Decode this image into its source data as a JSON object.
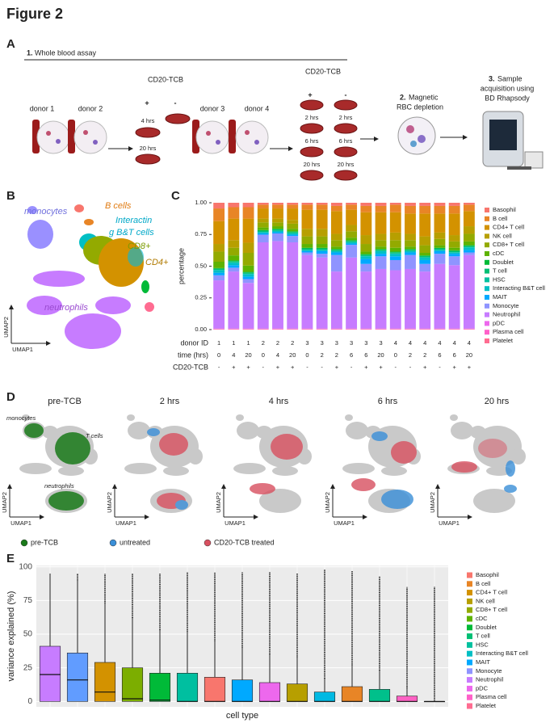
{
  "figure_title": "Figure 2",
  "panel_letters": [
    "A",
    "B",
    "C",
    "D",
    "E"
  ],
  "panel_a": {
    "step1_num": "1.",
    "step1": "Whole blood assay",
    "donors": [
      "donor 1",
      "donor 2",
      "donor 3",
      "donor 4"
    ],
    "treatment": "CD20-TCB",
    "plus": "+",
    "minus": "-",
    "times_left": [
      "4 hrs",
      "20 hrs"
    ],
    "times_right": [
      "2 hrs",
      "2 hrs",
      "6 hrs",
      "6 hrs",
      "20 hrs",
      "20 hrs"
    ],
    "step2_num": "2.",
    "step2": [
      "Magnetic",
      "RBC depletion"
    ],
    "step3_num": "3.",
    "step3": [
      "Sample",
      "acquisition using",
      "BD Rhapsody"
    ]
  },
  "panel_b": {
    "labels": [
      "monocytes",
      "B cells",
      "Interactin",
      "g B&T cells",
      "CD8+",
      "CD4+",
      "neutrophils"
    ],
    "x_axis": "UMAP1",
    "y_axis": "UMAP2"
  },
  "panel_d": {
    "titles": [
      "pre-TCB",
      "2 hrs",
      "4  hrs",
      "6  hrs",
      "20  hrs"
    ],
    "labels": [
      "monocytes",
      "T cells",
      "neutrophils"
    ],
    "x_axis": "UMAP1",
    "y_axis": "UMAP2",
    "legend": [
      {
        "name": "pre-TCB",
        "color": "#1a7a1a"
      },
      {
        "name": "untreated",
        "color": "#3a8fd8"
      },
      {
        "name": "CD20-TCB treated",
        "color": "#d85060"
      }
    ]
  },
  "chart_data": [
    {
      "type": "stacked_bar",
      "y_label": "percentage",
      "ylim": [
        0,
        1
      ],
      "yticks": [
        {
          "value": 0,
          "label": "0.00"
        },
        {
          "value": 0.25,
          "label": "0.25"
        },
        {
          "value": 0.5,
          "label": "0.50"
        },
        {
          "value": 0.75,
          "label": "0.75"
        },
        {
          "value": 1,
          "label": "1.00"
        }
      ],
      "row_labels": [
        "donor ID",
        "time (hrs)",
        "CD20-TCB"
      ],
      "donor": [
        1,
        1,
        1,
        2,
        2,
        2,
        3,
        3,
        3,
        3,
        3,
        3,
        4,
        4,
        4,
        4,
        4,
        4
      ],
      "time": [
        0,
        4,
        20,
        0,
        4,
        20,
        0,
        2,
        2,
        6,
        6,
        20,
        0,
        2,
        2,
        6,
        6,
        20
      ],
      "treatment": [
        "-",
        "+",
        "+",
        "-",
        "+",
        "+",
        "-",
        "-",
        "+",
        "-",
        "+",
        "+",
        "-",
        "-",
        "+",
        "-",
        "+",
        "+"
      ],
      "series": [
        {
          "name": "Basophil",
          "color": "#F8766D",
          "values": [
            0.045,
            0.035,
            0.035,
            0.015,
            0.015,
            0.015,
            0.015,
            0.015,
            0.025,
            0.015,
            0.025,
            0.025,
            0.015,
            0.025,
            0.025,
            0.025,
            0.025,
            0.015
          ]
        },
        {
          "name": "B cell",
          "color": "#E88526",
          "values": [
            0.1,
            0.09,
            0.09,
            0.03,
            0.03,
            0.03,
            0.04,
            0.04,
            0.04,
            0.04,
            0.05,
            0.05,
            0.06,
            0.06,
            0.06,
            0.06,
            0.06,
            0.05
          ]
        },
        {
          "name": "CD4+ T cell",
          "color": "#D39200",
          "values": [
            0.18,
            0.17,
            0.19,
            0.08,
            0.08,
            0.09,
            0.15,
            0.15,
            0.18,
            0.12,
            0.18,
            0.17,
            0.16,
            0.16,
            0.18,
            0.15,
            0.17,
            0.12
          ]
        },
        {
          "name": "NK cell",
          "color": "#B79F00",
          "values": [
            0.06,
            0.06,
            0.08,
            0.03,
            0.03,
            0.03,
            0.06,
            0.06,
            0.05,
            0.05,
            0.07,
            0.05,
            0.06,
            0.05,
            0.07,
            0.05,
            0.05,
            0.06
          ]
        },
        {
          "name": "CD8+ T cell",
          "color": "#93AA00",
          "values": [
            0.08,
            0.06,
            0.1,
            0.04,
            0.03,
            0.04,
            0.06,
            0.06,
            0.05,
            0.05,
            0.06,
            0.05,
            0.06,
            0.05,
            0.06,
            0.05,
            0.05,
            0.06
          ]
        },
        {
          "name": "cDC",
          "color": "#5EB300",
          "values": [
            0.05,
            0.04,
            0.05,
            0.02,
            0.02,
            0.02,
            0.03,
            0.03,
            0.02,
            0.02,
            0.02,
            0.02,
            0.03,
            0.02,
            0.02,
            0.02,
            0.02,
            0.03
          ]
        },
        {
          "name": "Doublet",
          "color": "#00BA38",
          "values": [
            0.005,
            0.005,
            0.005,
            0.005,
            0.005,
            0.005,
            0.005,
            0.005,
            0.005,
            0.005,
            0.005,
            0.005,
            0.005,
            0.005,
            0.005,
            0.005,
            0.005,
            0.005
          ]
        },
        {
          "name": "T cell",
          "color": "#00BF74",
          "values": [
            0.01,
            0.01,
            0.01,
            0.01,
            0.01,
            0.01,
            0.01,
            0.01,
            0.01,
            0.01,
            0.01,
            0.01,
            0.01,
            0.01,
            0.01,
            0.01,
            0.01,
            0.01
          ]
        },
        {
          "name": "HSC",
          "color": "#00C19F",
          "values": [
            0.002,
            0.002,
            0.002,
            0.002,
            0.002,
            0.002,
            0.002,
            0.002,
            0.002,
            0.002,
            0.002,
            0.002,
            0.002,
            0.002,
            0.002,
            0.002,
            0.002,
            0.002
          ]
        },
        {
          "name": "Interacting B&T cell",
          "color": "#00BFC4",
          "values": [
            0.02,
            0.02,
            0.02,
            0.01,
            0.01,
            0.01,
            0.01,
            0.01,
            0.01,
            0.01,
            0.02,
            0.02,
            0.02,
            0.01,
            0.02,
            0.01,
            0.01,
            0.02
          ]
        },
        {
          "name": "MAIT",
          "color": "#00A9FF",
          "values": [
            0.02,
            0.02,
            0.02,
            0.01,
            0.01,
            0.01,
            0.01,
            0.02,
            0.02,
            0.01,
            0.04,
            0.02,
            0.03,
            0.02,
            0.03,
            0.02,
            0.02,
            0.02
          ]
        },
        {
          "name": "Monocyte",
          "color": "#8F94FF",
          "values": [
            0.04,
            0.03,
            0.03,
            0.06,
            0.06,
            0.05,
            0.02,
            0.03,
            0.13,
            0.1,
            0.06,
            0.1,
            0.08,
            0.11,
            0.06,
            0.08,
            0.07,
            0.02
          ]
        },
        {
          "name": "Neutrophil",
          "color": "#C77CFF",
          "values": [
            0.38,
            0.45,
            0.36,
            0.68,
            0.69,
            0.68,
            0.58,
            0.56,
            0.45,
            0.56,
            0.45,
            0.47,
            0.46,
            0.47,
            0.45,
            0.51,
            0.5,
            0.58
          ]
        },
        {
          "name": "pDC",
          "color": "#ED68ED",
          "values": [
            0.003,
            0.003,
            0.003,
            0.003,
            0.003,
            0.003,
            0.003,
            0.003,
            0.003,
            0.003,
            0.003,
            0.003,
            0.003,
            0.003,
            0.003,
            0.003,
            0.003,
            0.003
          ]
        },
        {
          "name": "Plasma cell",
          "color": "#FF61C9",
          "values": [
            0.002,
            0.002,
            0.002,
            0.002,
            0.002,
            0.002,
            0.002,
            0.002,
            0.002,
            0.002,
            0.002,
            0.002,
            0.002,
            0.002,
            0.002,
            0.002,
            0.002,
            0.002
          ]
        },
        {
          "name": "Platelet",
          "color": "#FF6C91",
          "values": [
            0.003,
            0.003,
            0.003,
            0.003,
            0.003,
            0.003,
            0.003,
            0.003,
            0.003,
            0.003,
            0.003,
            0.003,
            0.003,
            0.003,
            0.003,
            0.003,
            0.003,
            0.003
          ]
        }
      ]
    },
    {
      "type": "box",
      "y_label": "variance explained (%)",
      "x_label": "cell type",
      "ylim": [
        -4,
        101
      ],
      "yticks": [
        0,
        25,
        50,
        75,
        100
      ],
      "grid": true,
      "boxes": [
        {
          "color": "#C77CFF",
          "q1": 0,
          "median": 20,
          "q3": 41,
          "whisker_high": 95,
          "max": 95
        },
        {
          "color": "#619CFF",
          "q1": 0,
          "median": 16,
          "q3": 36,
          "whisker_high": 90,
          "max": 95
        },
        {
          "color": "#D39200",
          "q1": 0,
          "median": 7,
          "q3": 29,
          "whisker_high": 73,
          "max": 95
        },
        {
          "color": "#7CAE00",
          "q1": 0,
          "median": 2,
          "q3": 25,
          "whisker_high": 62,
          "max": 95
        },
        {
          "color": "#00BA38",
          "q1": 0,
          "median": 1,
          "q3": 21,
          "whisker_high": 53,
          "max": 95
        },
        {
          "color": "#00BFA0",
          "q1": 0,
          "median": 0,
          "q3": 21,
          "whisker_high": 52,
          "max": 96
        },
        {
          "color": "#F8766D",
          "q1": 0,
          "median": 0,
          "q3": 18,
          "whisker_high": 45,
          "max": 96
        },
        {
          "color": "#00A9FF",
          "q1": 0,
          "median": 0,
          "q3": 16,
          "whisker_high": 40,
          "max": 96
        },
        {
          "color": "#ED68ED",
          "q1": 0,
          "median": 0,
          "q3": 14,
          "whisker_high": 35,
          "max": 96
        },
        {
          "color": "#B79F00",
          "q1": 0,
          "median": 0,
          "q3": 13,
          "whisker_high": 33,
          "max": 95
        },
        {
          "color": "#00B9E3",
          "q1": 0,
          "median": 0,
          "q3": 7,
          "whisker_high": 17,
          "max": 98
        },
        {
          "color": "#E88526",
          "q1": 0,
          "median": 0,
          "q3": 11,
          "whisker_high": 27,
          "max": 97
        },
        {
          "color": "#00C08B",
          "q1": 0,
          "median": 0,
          "q3": 9,
          "whisker_high": 23,
          "max": 93
        },
        {
          "color": "#FF61C3",
          "q1": 0,
          "median": 0,
          "q3": 4,
          "whisker_high": 10,
          "max": 85
        },
        {
          "color": "#999999",
          "q1": 0,
          "median": 0,
          "q3": 0,
          "whisker_high": 0,
          "max": 85
        }
      ],
      "legend": [
        {
          "name": "Basophil",
          "color": "#F8766D"
        },
        {
          "name": "B cell",
          "color": "#E88526"
        },
        {
          "name": "CD4+ T cell",
          "color": "#D39200"
        },
        {
          "name": "NK cell",
          "color": "#B79F00"
        },
        {
          "name": "CD8+ T cell",
          "color": "#93AA00"
        },
        {
          "name": "cDC",
          "color": "#5EB300"
        },
        {
          "name": "Doublet",
          "color": "#00BA38"
        },
        {
          "name": "T cell",
          "color": "#00BF74"
        },
        {
          "name": "HSC",
          "color": "#00C19F"
        },
        {
          "name": "Interacting B&T cell",
          "color": "#00BFC4"
        },
        {
          "name": "MAIT",
          "color": "#00A9FF"
        },
        {
          "name": "Monocyte",
          "color": "#8F94FF"
        },
        {
          "name": "Neutrophil",
          "color": "#C77CFF"
        },
        {
          "name": "pDC",
          "color": "#ED68ED"
        },
        {
          "name": "Plasma cell",
          "color": "#FF61C9"
        },
        {
          "name": "Platelet",
          "color": "#FF6C91"
        }
      ]
    }
  ]
}
